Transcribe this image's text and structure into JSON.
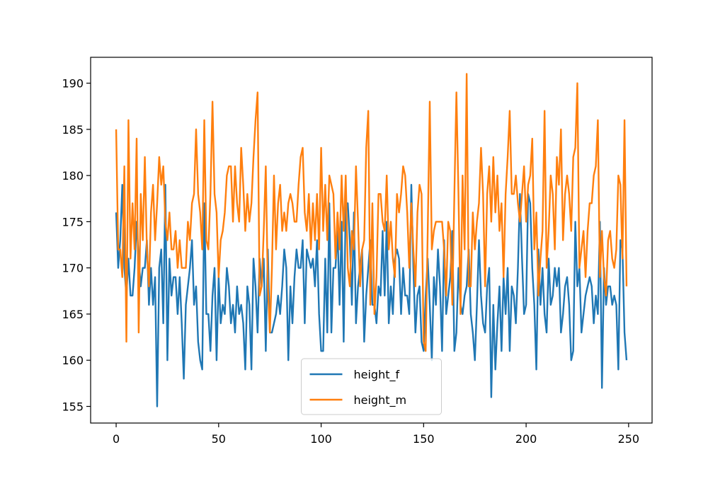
{
  "chart_data": {
    "type": "line",
    "x": [
      0,
      1,
      2,
      3,
      4,
      5,
      6,
      7,
      8,
      9,
      10,
      11,
      12,
      13,
      14,
      15,
      16,
      17,
      18,
      19,
      20,
      21,
      22,
      23,
      24,
      25,
      26,
      27,
      28,
      29,
      30,
      31,
      32,
      33,
      34,
      35,
      36,
      37,
      38,
      39,
      40,
      41,
      42,
      43,
      44,
      45,
      46,
      47,
      48,
      49,
      50,
      51,
      52,
      53,
      54,
      55,
      56,
      57,
      58,
      59,
      60,
      61,
      62,
      63,
      64,
      65,
      66,
      67,
      68,
      69,
      70,
      71,
      72,
      73,
      74,
      75,
      76,
      77,
      78,
      79,
      80,
      81,
      82,
      83,
      84,
      85,
      86,
      87,
      88,
      89,
      90,
      91,
      92,
      93,
      94,
      95,
      96,
      97,
      98,
      99,
      100,
      101,
      102,
      103,
      104,
      105,
      106,
      107,
      108,
      109,
      110,
      111,
      112,
      113,
      114,
      115,
      116,
      117,
      118,
      119,
      120,
      121,
      122,
      123,
      124,
      125,
      126,
      127,
      128,
      129,
      130,
      131,
      132,
      133,
      134,
      135,
      136,
      137,
      138,
      139,
      140,
      141,
      142,
      143,
      144,
      145,
      146,
      147,
      148,
      149,
      150,
      151,
      152,
      153,
      154,
      155,
      156,
      157,
      158,
      159,
      160,
      161,
      162,
      163,
      164,
      165,
      166,
      167,
      168,
      169,
      170,
      171,
      172,
      173,
      174,
      175,
      176,
      177,
      178,
      179,
      180,
      181,
      182,
      183,
      184,
      185,
      186,
      187,
      188,
      189,
      190,
      191,
      192,
      193,
      194,
      195,
      196,
      197,
      198,
      199,
      200,
      201,
      202,
      203,
      204,
      205,
      206,
      207,
      208,
      209,
      210,
      211,
      212,
      213,
      214,
      215,
      216,
      217,
      218,
      219,
      220,
      221,
      222,
      223,
      224,
      225,
      226,
      227,
      228,
      229,
      230,
      231,
      232,
      233,
      234,
      235,
      236,
      237,
      238,
      239,
      240,
      241,
      242,
      243,
      244,
      245,
      246,
      247,
      248,
      249
    ],
    "series": [
      {
        "name": "height_f",
        "color": "#1f77b4",
        "values": [
          176,
          170,
          173,
          179,
          170,
          167,
          171,
          167,
          167,
          170,
          175,
          171,
          168,
          170,
          170,
          173,
          166,
          170,
          166,
          169,
          155,
          170,
          172,
          164,
          179,
          160,
          171,
          167,
          169,
          169,
          165,
          169,
          164,
          158,
          166,
          168,
          170,
          173,
          166,
          168,
          162,
          160,
          159,
          177,
          165,
          165,
          161,
          167,
          170,
          160,
          169,
          164,
          166,
          165,
          170,
          168,
          164,
          166,
          163,
          168,
          165,
          166,
          164,
          159,
          168,
          166,
          159,
          171,
          168,
          163,
          171,
          168,
          171,
          161,
          172,
          163,
          163,
          164,
          165,
          167,
          165,
          168,
          172,
          170,
          160,
          168,
          164,
          169,
          172,
          170,
          170,
          173,
          164,
          172,
          171,
          170,
          171,
          168,
          173,
          165,
          161,
          161,
          171,
          163,
          177,
          163,
          170,
          170,
          174,
          166,
          175,
          162,
          177,
          177,
          173,
          166,
          176,
          164,
          168,
          170,
          172,
          162,
          167,
          170,
          173,
          166,
          166,
          164,
          168,
          167,
          174,
          167,
          175,
          164,
          168,
          165,
          171,
          172,
          171,
          165,
          170,
          167,
          167,
          165,
          179,
          170,
          163,
          167,
          168,
          162,
          161,
          167,
          171,
          166,
          160,
          169,
          166,
          172,
          168,
          161,
          173,
          165,
          167,
          169,
          174,
          161,
          163,
          170,
          166,
          165,
          167,
          168,
          172,
          165,
          163,
          160,
          166,
          173,
          167,
          164,
          163,
          168,
          170,
          156,
          166,
          159,
          164,
          168,
          161,
          169,
          165,
          170,
          161,
          168,
          167,
          164,
          170,
          178,
          171,
          165,
          166,
          178,
          177,
          170,
          166,
          159,
          172,
          166,
          170,
          165,
          163,
          171,
          166,
          167,
          170,
          168,
          170,
          163,
          165,
          168,
          169,
          166,
          160,
          161,
          175,
          168,
          170,
          163,
          165,
          167,
          168,
          169,
          168,
          164,
          167,
          165,
          175,
          157,
          170,
          166,
          168,
          168,
          166,
          167,
          166,
          159,
          173,
          172,
          163,
          160
        ]
      },
      {
        "name": "height_m",
        "color": "#ff7f0e",
        "values": [
          185,
          172,
          172,
          169,
          181,
          162,
          186,
          171,
          177,
          172,
          184,
          163,
          178,
          173,
          182,
          172,
          168,
          176,
          179,
          173,
          177,
          182,
          179,
          181,
          175,
          173,
          176,
          172,
          172,
          174,
          170,
          173,
          170,
          170,
          170,
          175,
          173,
          177,
          178,
          185,
          178,
          176,
          172,
          186,
          173,
          172,
          178,
          188,
          178,
          176,
          169,
          173,
          174,
          176,
          180,
          181,
          181,
          175,
          181,
          177,
          175,
          183,
          179,
          174,
          178,
          175,
          177,
          182,
          186,
          189,
          167,
          168,
          174,
          181,
          168,
          163,
          170,
          180,
          172,
          177,
          179,
          174,
          176,
          174,
          177,
          178,
          177,
          175,
          175,
          179,
          182,
          183,
          176,
          174,
          178,
          172,
          177,
          173,
          178,
          172,
          183,
          174,
          179,
          173,
          180,
          179,
          178,
          171,
          176,
          172,
          180,
          174,
          180,
          170,
          168,
          174,
          172,
          181,
          175,
          168,
          172,
          173,
          183,
          187,
          166,
          177,
          165,
          169,
          178,
          178,
          175,
          174,
          180,
          172,
          175,
          171,
          169,
          178,
          176,
          178,
          181,
          180,
          176,
          170,
          177,
          172,
          168,
          176,
          179,
          178,
          162,
          161,
          174,
          188,
          172,
          174,
          175,
          175,
          175,
          175,
          172,
          167,
          175,
          174,
          166,
          178,
          189,
          178,
          165,
          180,
          172,
          191,
          168,
          168,
          176,
          172,
          175,
          177,
          183,
          178,
          168,
          178,
          181,
          175,
          182,
          176,
          180,
          174,
          177,
          169,
          178,
          182,
          187,
          178,
          178,
          180,
          177,
          175,
          178,
          181,
          175,
          179,
          180,
          184,
          172,
          176,
          167,
          171,
          174,
          187,
          170,
          174,
          180,
          178,
          172,
          182,
          179,
          185,
          173,
          178,
          180,
          178,
          174,
          182,
          183,
          190,
          170,
          172,
          174,
          169,
          174,
          177,
          177,
          180,
          181,
          186,
          169,
          174,
          169,
          167,
          173,
          174,
          171,
          170,
          172,
          180,
          179,
          171,
          186,
          168
        ]
      }
    ],
    "xlim": [
      -12.45,
      261.45
    ],
    "xticks": [
      0,
      50,
      100,
      150,
      200,
      250
    ],
    "ylim": [
      153.2,
      192.8
    ],
    "yticks": [
      155,
      160,
      165,
      170,
      175,
      180,
      185,
      190
    ],
    "legend": "lower center"
  }
}
